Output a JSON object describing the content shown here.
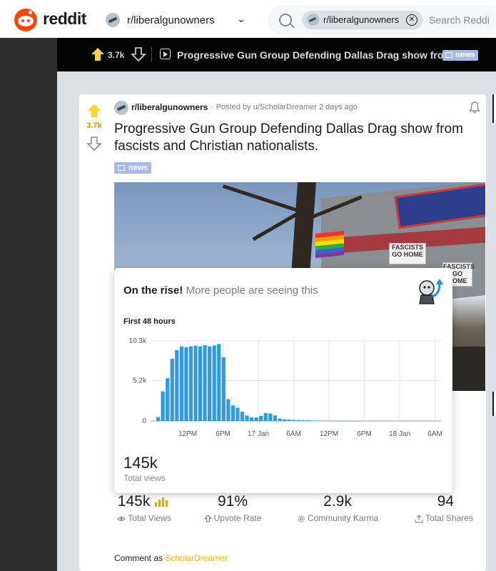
{
  "header": {
    "logo_text": "reddit",
    "community": "r/liberalgunowners",
    "search_chip": "r/liberalgunowners",
    "search_placeholder": "Search Reddi"
  },
  "post_bar": {
    "score": "3.7k",
    "title": "Progressive Gun Group Defending Dallas Drag show fro...",
    "flair": "news"
  },
  "post": {
    "score": "3.7k",
    "subreddit": "r/liberalgunowners",
    "posted_by": "· Posted by u/ScholarDreamer 2 days ago",
    "title": "Progressive Gun Group Defending Dallas Drag show from fascists and Christian nationalists.",
    "flair": "news"
  },
  "image_signs": [
    "FASCISTS GO HOME",
    "FASCISTS GO HOME"
  ],
  "popup": {
    "rise_bold": "On the rise!",
    "rise_rest": "More people are seeing this",
    "chart_title": "First 48 hours",
    "total": "145k",
    "total_label": "Total views"
  },
  "chart_data": {
    "type": "bar",
    "title": "First 48 hours",
    "xlabel": "",
    "ylabel": "",
    "y_ticks": [
      "10.3k",
      "5.2k",
      "0"
    ],
    "y_tick_values": [
      10300,
      5200,
      0
    ],
    "ylim": [
      0,
      10300
    ],
    "x_ticks": [
      "12PM",
      "6PM",
      "17 Jan",
      "6AM",
      "12PM",
      "6PM",
      "18 Jan",
      "6AM"
    ],
    "values": [
      500,
      3800,
      5500,
      8000,
      9100,
      9600,
      9500,
      9600,
      9700,
      9600,
      9750,
      9600,
      9700,
      9900,
      8200,
      2800,
      2000,
      1700,
      1200,
      700,
      450,
      450,
      650,
      1000,
      950,
      700,
      300,
      200,
      180,
      130,
      100,
      90,
      80,
      60,
      50,
      40,
      30,
      25,
      20,
      15,
      10,
      8,
      5
    ],
    "grid": true,
    "bar_color": "#2f9ae0"
  },
  "stats": [
    {
      "value": "145k",
      "label": "Total Views",
      "icon": "eye-icon"
    },
    {
      "value": "91%",
      "label": "Upvote Rate",
      "icon": "upvote-outline-icon"
    },
    {
      "value": "2.9k",
      "label": "Community Karma",
      "icon": "karma-gear-icon"
    },
    {
      "value": "94",
      "label": "Total Shares",
      "icon": "share-icon"
    }
  ],
  "comment": {
    "prefix": "Comment as",
    "user": "ScholarDreamer"
  },
  "colors": {
    "brand": "#ff4500",
    "upvote_gold": "#cc9b00",
    "bar_blue": "#2f9ae0",
    "flair_blue": "#a5bbe4"
  }
}
